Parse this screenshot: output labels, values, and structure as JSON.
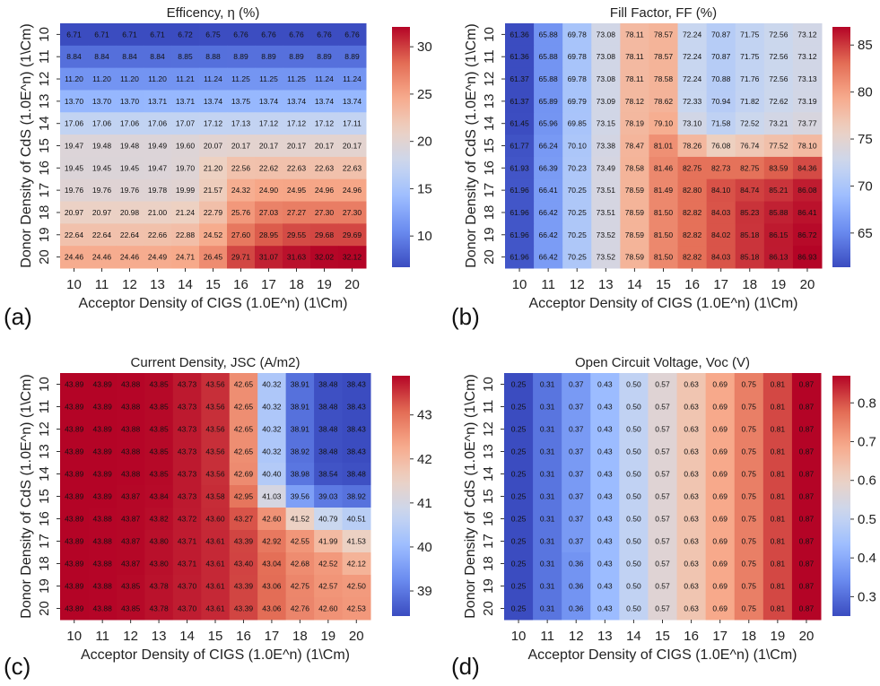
{
  "colormap": {
    "name": "coolwarm",
    "stops": [
      "#3b4cc0",
      "#6788ee",
      "#9abbff",
      "#c9d7f0",
      "#edd1c2",
      "#f7a889",
      "#e26952",
      "#b40426"
    ]
  },
  "chart_data": [
    {
      "type": "heatmap",
      "panel_label": "(a)",
      "title": "Efficency, η (%)",
      "xlabel": "Acceptor Density of CIGS (1.0E^n) (1\\Cm)",
      "ylabel": "Donor Density of CdS (1.0E^n) (1\\Cm)",
      "x_ticks": [
        "10",
        "11",
        "12",
        "13",
        "14",
        "15",
        "16",
        "17",
        "18",
        "19",
        "20"
      ],
      "y_ticks": [
        "10",
        "11",
        "12",
        "13",
        "14",
        "15",
        "16",
        "17",
        "18",
        "19",
        "20"
      ],
      "vmin": 6.7,
      "vmax": 32.1,
      "colorbar_ticks": [
        10,
        15,
        20,
        25,
        30
      ],
      "values": [
        [
          "6.71",
          "6.71",
          "6.71",
          "6.71",
          "6.72",
          "6.75",
          "6.76",
          "6.76",
          "6.76",
          "6.76",
          "6.76"
        ],
        [
          "8.84",
          "8.84",
          "8.84",
          "8.84",
          "8.85",
          "8.88",
          "8.89",
          "8.89",
          "8.89",
          "8.89",
          "8.89"
        ],
        [
          "11.20",
          "11.20",
          "11.20",
          "11.20",
          "11.21",
          "11.24",
          "11.25",
          "11.25",
          "11.25",
          "11.24",
          "11.24"
        ],
        [
          "13.70",
          "13.70",
          "13.70",
          "13.71",
          "13.71",
          "13.74",
          "13.75",
          "13.74",
          "13.74",
          "13.74",
          "13.74"
        ],
        [
          "17.06",
          "17.06",
          "17.06",
          "17.06",
          "17.07",
          "17.12",
          "17.13",
          "17.12",
          "17.12",
          "17.12",
          "17.11"
        ],
        [
          "19.47",
          "19.48",
          "19.48",
          "19.49",
          "19.60",
          "20.07",
          "20.17",
          "20.17",
          "20.17",
          "20.17",
          "20.17"
        ],
        [
          "19.45",
          "19.45",
          "19.45",
          "19.47",
          "19.70",
          "21.20",
          "22.56",
          "22.62",
          "22.63",
          "22.63",
          "22.63"
        ],
        [
          "19.76",
          "19.76",
          "19.76",
          "19.78",
          "19.99",
          "21.57",
          "24.32",
          "24.90",
          "24.95",
          "24.96",
          "24.96"
        ],
        [
          "20.97",
          "20.97",
          "20.98",
          "21.00",
          "21.24",
          "22.79",
          "25.76",
          "27.03",
          "27.27",
          "27.30",
          "27.30"
        ],
        [
          "22.64",
          "22.64",
          "22.64",
          "22.66",
          "22.88",
          "24.52",
          "27.60",
          "28.95",
          "29.55",
          "29.68",
          "29.69"
        ],
        [
          "24.46",
          "24.46",
          "24.46",
          "24.49",
          "24.71",
          "26.45",
          "29.71",
          "31.07",
          "31.63",
          "32.02",
          "32.12"
        ]
      ]
    },
    {
      "type": "heatmap",
      "panel_label": "(b)",
      "title": "Fill Factor, FF (%)",
      "xlabel": "Acceptor Density of CIGS (1.0E^n) (1\\Cm)",
      "ylabel": "Donor Density of CdS (1.0E^n) (1\\Cm)",
      "x_ticks": [
        "10",
        "11",
        "12",
        "13",
        "14",
        "15",
        "16",
        "17",
        "18",
        "19",
        "20"
      ],
      "y_ticks": [
        "10",
        "11",
        "12",
        "13",
        "14",
        "15",
        "16",
        "17",
        "18",
        "19",
        "20"
      ],
      "vmin": 61.36,
      "vmax": 86.93,
      "colorbar_ticks": [
        65,
        70,
        75,
        80,
        85
      ],
      "values": [
        [
          "61.36",
          "65.88",
          "69.78",
          "73.08",
          "78.11",
          "78.57",
          "72.24",
          "70.87",
          "71.75",
          "72.56",
          "73.12"
        ],
        [
          "61.36",
          "65.88",
          "69.78",
          "73.08",
          "78.11",
          "78.57",
          "72.24",
          "70.87",
          "71.75",
          "72.56",
          "73.12"
        ],
        [
          "61.37",
          "65.88",
          "69.78",
          "73.08",
          "78.11",
          "78.58",
          "72.24",
          "70.88",
          "71.76",
          "72.56",
          "73.13"
        ],
        [
          "61.37",
          "65.89",
          "69.79",
          "73.09",
          "78.12",
          "78.62",
          "72.33",
          "70.94",
          "71.82",
          "72.62",
          "73.19"
        ],
        [
          "61.45",
          "65.96",
          "69.85",
          "73.15",
          "78.19",
          "79.10",
          "73.10",
          "71.58",
          "72.52",
          "73.21",
          "73.77"
        ],
        [
          "61.77",
          "66.24",
          "70.10",
          "73.38",
          "78.47",
          "81.01",
          "78.26",
          "76.08",
          "76.74",
          "77.52",
          "78.10"
        ],
        [
          "61.93",
          "66.39",
          "70.23",
          "73.49",
          "78.58",
          "81.46",
          "82.75",
          "82.73",
          "82.75",
          "83.59",
          "84.36"
        ],
        [
          "61.96",
          "66.41",
          "70.25",
          "73.51",
          "78.59",
          "81.49",
          "82.80",
          "84.10",
          "84.74",
          "85.21",
          "86.08"
        ],
        [
          "61.96",
          "66.42",
          "70.25",
          "73.51",
          "78.59",
          "81.50",
          "82.82",
          "84.03",
          "85.23",
          "85.88",
          "86.41"
        ],
        [
          "61.96",
          "66.42",
          "70.25",
          "73.52",
          "78.59",
          "81.50",
          "82.82",
          "84.02",
          "85.18",
          "86.15",
          "86.72"
        ],
        [
          "61.96",
          "66.42",
          "70.25",
          "73.52",
          "78.59",
          "81.50",
          "82.82",
          "84.03",
          "85.18",
          "86.13",
          "86.93"
        ]
      ]
    },
    {
      "type": "heatmap",
      "panel_label": "(c)",
      "title": "Current Density, JSC (A/m2)",
      "xlabel": "Acceptor Density of CIGS (1.0E^n) (1\\Cm)",
      "ylabel": "Donor Density of CdS (1.0E^n) (1\\Cm)",
      "x_ticks": [
        "10",
        "11",
        "12",
        "13",
        "14",
        "15",
        "16",
        "17",
        "18",
        "19",
        "20"
      ],
      "y_ticks": [
        "10",
        "11",
        "12",
        "13",
        "14",
        "15",
        "16",
        "17",
        "18",
        "19",
        "20"
      ],
      "vmin": 38.43,
      "vmax": 43.89,
      "colorbar_ticks": [
        39,
        40,
        41,
        42,
        43
      ],
      "values": [
        [
          "43.89",
          "43.89",
          "43.88",
          "43.85",
          "43.73",
          "43.56",
          "42.65",
          "40.32",
          "38.91",
          "38.48",
          "38.43"
        ],
        [
          "43.89",
          "43.89",
          "43.88",
          "43.85",
          "43.73",
          "43.56",
          "42.65",
          "40.32",
          "38.91",
          "38.48",
          "38.43"
        ],
        [
          "43.89",
          "43.89",
          "43.88",
          "43.85",
          "43.73",
          "43.56",
          "42.65",
          "40.32",
          "38.91",
          "38.48",
          "38.43"
        ],
        [
          "43.89",
          "43.89",
          "43.88",
          "43.85",
          "43.73",
          "43.56",
          "42.65",
          "40.32",
          "38.92",
          "38.48",
          "38.43"
        ],
        [
          "43.89",
          "43.89",
          "43.88",
          "43.85",
          "43.73",
          "43.56",
          "42.69",
          "40.40",
          "38.98",
          "38.54",
          "38.48"
        ],
        [
          "43.89",
          "43.89",
          "43.87",
          "43.84",
          "43.73",
          "43.58",
          "42.95",
          "41.03",
          "39.56",
          "39.03",
          "38.92"
        ],
        [
          "43.89",
          "43.88",
          "43.87",
          "43.82",
          "43.72",
          "43.60",
          "43.27",
          "42.60",
          "41.52",
          "40.79",
          "40.51"
        ],
        [
          "43.89",
          "43.88",
          "43.87",
          "43.80",
          "43.71",
          "43.61",
          "43.39",
          "42.92",
          "42.55",
          "41.99",
          "41.53"
        ],
        [
          "43.89",
          "43.88",
          "43.87",
          "43.80",
          "43.71",
          "43.61",
          "43.40",
          "43.04",
          "42.68",
          "42.52",
          "42.12"
        ],
        [
          "43.89",
          "43.88",
          "43.85",
          "43.78",
          "43.70",
          "43.61",
          "43.39",
          "43.06",
          "42.75",
          "42.57",
          "42.50"
        ],
        [
          "43.89",
          "43.88",
          "43.85",
          "43.78",
          "43.70",
          "43.61",
          "43.39",
          "43.06",
          "42.76",
          "42.60",
          "42.53"
        ]
      ]
    },
    {
      "type": "heatmap",
      "panel_label": "(d)",
      "title": "Open Circuit Voltage, Voc (V)",
      "xlabel": "Acceptor Density of CIGS (1.0E^n) (1\\Cm)",
      "ylabel": "Donor Density of CdS (1.0E^n) (1\\Cm)",
      "x_ticks": [
        "10",
        "11",
        "12",
        "13",
        "14",
        "15",
        "16",
        "17",
        "18",
        "19",
        "20"
      ],
      "y_ticks": [
        "10",
        "11",
        "12",
        "13",
        "14",
        "15",
        "16",
        "17",
        "18",
        "19",
        "20"
      ],
      "vmin": 0.25,
      "vmax": 0.87,
      "colorbar_ticks": [
        0.3,
        0.4,
        0.5,
        0.6,
        0.7,
        0.8
      ],
      "values": [
        [
          "0.25",
          "0.31",
          "0.37",
          "0.43",
          "0.50",
          "0.57",
          "0.63",
          "0.69",
          "0.75",
          "0.81",
          "0.87"
        ],
        [
          "0.25",
          "0.31",
          "0.37",
          "0.43",
          "0.50",
          "0.57",
          "0.63",
          "0.69",
          "0.75",
          "0.81",
          "0.87"
        ],
        [
          "0.25",
          "0.31",
          "0.37",
          "0.43",
          "0.50",
          "0.57",
          "0.63",
          "0.69",
          "0.75",
          "0.81",
          "0.87"
        ],
        [
          "0.25",
          "0.31",
          "0.37",
          "0.43",
          "0.50",
          "0.57",
          "0.63",
          "0.69",
          "0.75",
          "0.81",
          "0.87"
        ],
        [
          "0.25",
          "0.31",
          "0.37",
          "0.43",
          "0.50",
          "0.57",
          "0.63",
          "0.69",
          "0.75",
          "0.81",
          "0.87"
        ],
        [
          "0.25",
          "0.31",
          "0.37",
          "0.43",
          "0.50",
          "0.57",
          "0.63",
          "0.69",
          "0.75",
          "0.81",
          "0.87"
        ],
        [
          "0.25",
          "0.31",
          "0.37",
          "0.43",
          "0.50",
          "0.57",
          "0.63",
          "0.69",
          "0.75",
          "0.81",
          "0.87"
        ],
        [
          "0.25",
          "0.31",
          "0.37",
          "0.43",
          "0.50",
          "0.57",
          "0.63",
          "0.69",
          "0.75",
          "0.81",
          "0.87"
        ],
        [
          "0.25",
          "0.31",
          "0.36",
          "0.43",
          "0.50",
          "0.57",
          "0.63",
          "0.69",
          "0.75",
          "0.81",
          "0.87"
        ],
        [
          "0.25",
          "0.31",
          "0.36",
          "0.43",
          "0.50",
          "0.57",
          "0.63",
          "0.69",
          "0.75",
          "0.81",
          "0.87"
        ],
        [
          "0.25",
          "0.31",
          "0.36",
          "0.43",
          "0.50",
          "0.57",
          "0.63",
          "0.69",
          "0.75",
          "0.81",
          "0.87"
        ]
      ]
    }
  ]
}
